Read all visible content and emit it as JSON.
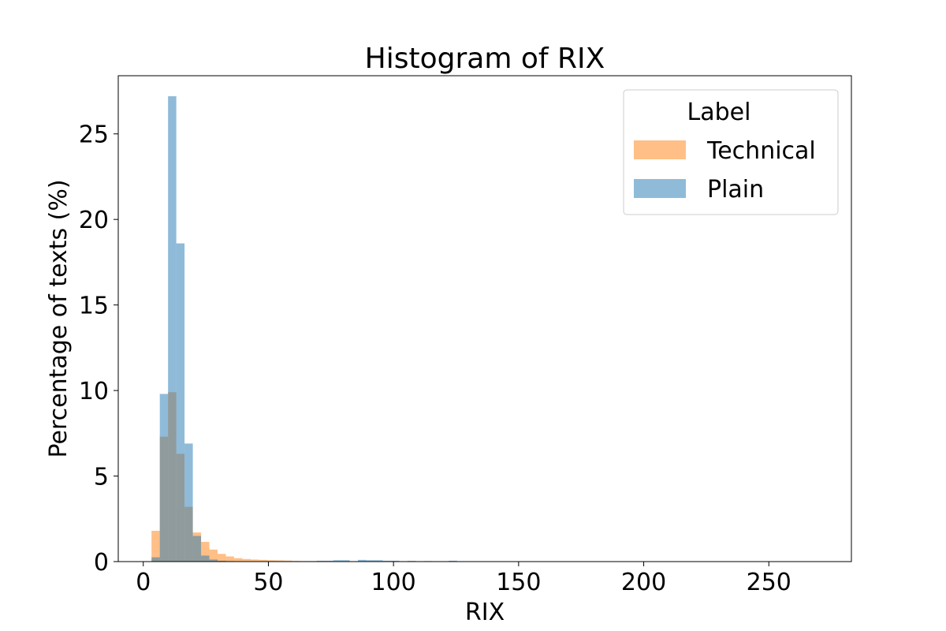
{
  "chart_data": {
    "type": "bar",
    "title": "Histogram of RIX",
    "xlabel": "RIX",
    "ylabel": "Percentage of texts (%)",
    "xlim": [
      -10,
      283
    ],
    "ylim": [
      0,
      28.4
    ],
    "xticks": [
      0,
      50,
      100,
      150,
      200,
      250
    ],
    "yticks": [
      0,
      5,
      10,
      15,
      20,
      25
    ],
    "grid": false,
    "legend": {
      "title": "Label",
      "placement": "top-right",
      "entries": [
        "Technical",
        "Plain"
      ]
    },
    "bin_width": 3.3,
    "series": [
      {
        "name": "Technical",
        "color": "#ff7f0e",
        "opacity": 0.5,
        "bins": [
          {
            "start": 3.3,
            "value": 1.8
          },
          {
            "start": 6.6,
            "value": 7.3
          },
          {
            "start": 9.9,
            "value": 9.9
          },
          {
            "start": 13.2,
            "value": 6.3
          },
          {
            "start": 16.5,
            "value": 3.2
          },
          {
            "start": 19.8,
            "value": 1.7
          },
          {
            "start": 23.1,
            "value": 1.15
          },
          {
            "start": 26.4,
            "value": 0.7
          },
          {
            "start": 29.7,
            "value": 0.45
          },
          {
            "start": 33.0,
            "value": 0.3
          },
          {
            "start": 36.3,
            "value": 0.2
          },
          {
            "start": 39.6,
            "value": 0.15
          },
          {
            "start": 42.9,
            "value": 0.12
          },
          {
            "start": 46.2,
            "value": 0.1
          },
          {
            "start": 49.5,
            "value": 0.08
          },
          {
            "start": 52.8,
            "value": 0.07
          },
          {
            "start": 56.1,
            "value": 0.06
          },
          {
            "start": 59.4,
            "value": 0.04
          },
          {
            "start": 62.7,
            "value": 0.03
          },
          {
            "start": 66.0,
            "value": 0.03
          },
          {
            "start": 69.3,
            "value": 0.02
          },
          {
            "start": 72.6,
            "value": 0.02
          },
          {
            "start": 75.9,
            "value": 0.02
          },
          {
            "start": 79.2,
            "value": 0.01
          }
        ]
      },
      {
        "name": "Plain",
        "color": "#1f77b4",
        "opacity": 0.5,
        "bins": [
          {
            "start": 3.3,
            "value": 0.25
          },
          {
            "start": 6.6,
            "value": 9.8
          },
          {
            "start": 9.9,
            "value": 27.2
          },
          {
            "start": 13.2,
            "value": 18.6
          },
          {
            "start": 16.5,
            "value": 6.9
          },
          {
            "start": 19.8,
            "value": 1.5
          },
          {
            "start": 23.1,
            "value": 0.35
          },
          {
            "start": 26.4,
            "value": 0.12
          },
          {
            "start": 29.7,
            "value": 0.05
          },
          {
            "start": 33.0,
            "value": 0.03
          },
          {
            "start": 69.3,
            "value": 0.05
          },
          {
            "start": 72.6,
            "value": 0.05
          },
          {
            "start": 75.9,
            "value": 0.08
          },
          {
            "start": 79.2,
            "value": 0.08
          },
          {
            "start": 85.8,
            "value": 0.1
          },
          {
            "start": 89.1,
            "value": 0.08
          },
          {
            "start": 92.4,
            "value": 0.08
          },
          {
            "start": 95.7,
            "value": 0.05
          },
          {
            "start": 99.0,
            "value": 0.05
          },
          {
            "start": 105.6,
            "value": 0.04
          },
          {
            "start": 112.2,
            "value": 0.03
          },
          {
            "start": 122.1,
            "value": 0.05
          }
        ]
      }
    ]
  }
}
